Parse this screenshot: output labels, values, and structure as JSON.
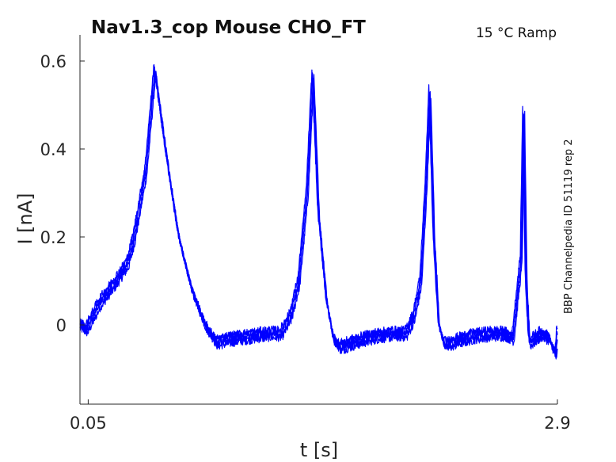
{
  "chart_data": {
    "type": "line",
    "title": "Nav1.3_cop  Mouse  CHO_FT",
    "condition": "15 °C  Ramp",
    "side_label": "BBP Channelpedia ID 51119 rep 2",
    "xlabel": "t [s]",
    "ylabel": "I [nA]",
    "xlim": [
      0.0,
      2.9
    ],
    "ylim": [
      -0.18,
      0.6
    ],
    "x_ticks": [
      0.05,
      2.9
    ],
    "x_tick_labels": [
      "0.05",
      "2.9"
    ],
    "y_ticks": [
      0.0,
      0.2,
      0.4,
      0.6
    ],
    "y_tick_labels": [
      "0",
      "0.2",
      "0.4",
      "0.6"
    ],
    "grid": false,
    "line_color": "#0000ff",
    "series": [
      {
        "values_t": [
          0.0,
          0.04,
          0.12,
          0.22,
          0.29,
          0.33,
          0.4,
          0.455,
          0.52,
          0.6,
          0.68,
          0.76,
          0.83,
          0.88,
          0.95,
          1.05,
          1.15,
          1.22,
          1.28,
          1.33,
          1.38,
          1.415,
          1.45,
          1.5,
          1.54,
          1.58,
          1.62,
          1.7,
          1.8,
          1.9,
          1.98,
          2.03,
          2.07,
          2.1,
          2.125,
          2.15,
          2.18,
          2.21,
          2.23,
          2.3,
          2.4,
          2.5,
          2.58,
          2.63,
          2.66,
          2.68,
          2.695,
          2.71,
          2.73,
          2.75,
          2.8,
          2.85,
          2.89,
          2.9
        ],
        "values_i": [
          0.0,
          -0.01,
          0.05,
          0.1,
          0.14,
          0.2,
          0.35,
          0.58,
          0.4,
          0.2,
          0.08,
          0.0,
          -0.04,
          -0.035,
          -0.03,
          -0.025,
          -0.02,
          -0.02,
          0.02,
          0.1,
          0.3,
          0.57,
          0.25,
          0.05,
          -0.03,
          -0.05,
          -0.045,
          -0.035,
          -0.025,
          -0.02,
          -0.02,
          0.02,
          0.1,
          0.3,
          0.53,
          0.2,
          0.0,
          -0.04,
          -0.045,
          -0.035,
          -0.025,
          -0.02,
          -0.02,
          -0.03,
          0.08,
          0.15,
          0.49,
          0.1,
          -0.04,
          -0.035,
          -0.02,
          -0.03,
          -0.07,
          -0.02
        ]
      }
    ]
  }
}
